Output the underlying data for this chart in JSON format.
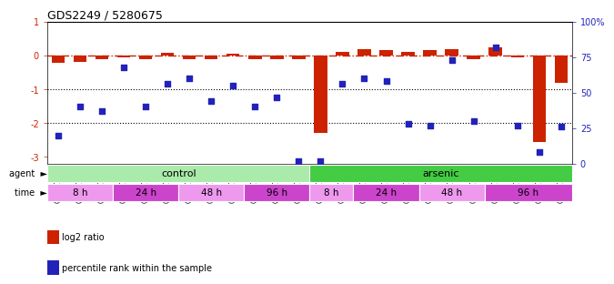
{
  "title": "GDS2249 / 5280675",
  "samples": [
    "GSM67029",
    "GSM67030",
    "GSM67031",
    "GSM67023",
    "GSM67024",
    "GSM67025",
    "GSM67026",
    "GSM67027",
    "GSM67028",
    "GSM67032",
    "GSM67033",
    "GSM67034",
    "GSM67017",
    "GSM67018",
    "GSM67019",
    "GSM67011",
    "GSM67012",
    "GSM67013",
    "GSM67014",
    "GSM67015",
    "GSM67016",
    "GSM67020",
    "GSM67021",
    "GSM67022"
  ],
  "log2_ratio": [
    -0.22,
    -0.18,
    -0.1,
    -0.05,
    -0.1,
    0.08,
    -0.1,
    -0.1,
    0.05,
    -0.12,
    -0.1,
    -0.12,
    -2.3,
    0.1,
    0.18,
    0.15,
    0.1,
    0.15,
    0.18,
    -0.1,
    0.25,
    -0.05,
    -2.55,
    -0.8
  ],
  "percentile": [
    20,
    40,
    37,
    68,
    40,
    56,
    60,
    44,
    55,
    40,
    47,
    2,
    2,
    56,
    60,
    58,
    28,
    27,
    73,
    30,
    82,
    27,
    8,
    26
  ],
  "bar_color": "#cc2200",
  "dot_color": "#2222bb",
  "background_color": "#ffffff",
  "ylim_left": [
    -3.2,
    1.0
  ],
  "ylim_right": [
    0,
    100
  ],
  "yticks_left": [
    -3,
    -2,
    -1,
    0,
    1
  ],
  "yticks_right": [
    0,
    25,
    50,
    75,
    100
  ],
  "ytick_labels_right": [
    "0",
    "25",
    "50",
    "75",
    "100%"
  ],
  "hline_y": [
    -1,
    -2
  ],
  "agent_groups": [
    {
      "label": "control",
      "start": 0,
      "end": 12,
      "color": "#aaeaaa"
    },
    {
      "label": "arsenic",
      "start": 12,
      "end": 24,
      "color": "#44cc44"
    }
  ],
  "time_groups": [
    {
      "label": "8 h",
      "start": 0,
      "end": 3,
      "color": "#ee99ee"
    },
    {
      "label": "24 h",
      "start": 3,
      "end": 6,
      "color": "#cc44cc"
    },
    {
      "label": "48 h",
      "start": 6,
      "end": 9,
      "color": "#ee99ee"
    },
    {
      "label": "96 h",
      "start": 9,
      "end": 12,
      "color": "#cc44cc"
    },
    {
      "label": "8 h",
      "start": 12,
      "end": 14,
      "color": "#ee99ee"
    },
    {
      "label": "24 h",
      "start": 14,
      "end": 17,
      "color": "#cc44cc"
    },
    {
      "label": "48 h",
      "start": 17,
      "end": 20,
      "color": "#ee99ee"
    },
    {
      "label": "96 h",
      "start": 20,
      "end": 24,
      "color": "#cc44cc"
    }
  ],
  "legend_items": [
    {
      "label": "log2 ratio",
      "color": "#cc2200"
    },
    {
      "label": "percentile rank within the sample",
      "color": "#2222bb"
    }
  ]
}
